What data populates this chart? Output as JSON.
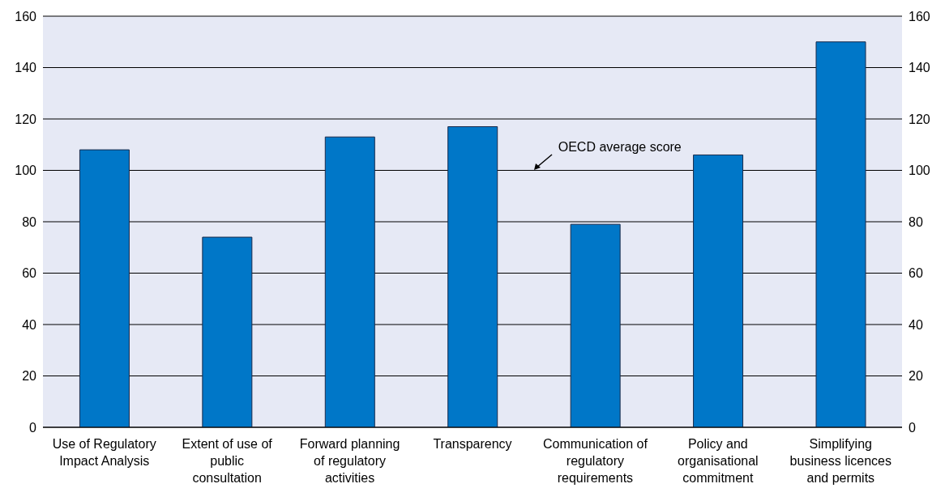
{
  "chart_data": {
    "type": "bar",
    "categories": [
      "Use of Regulatory Impact Analysis",
      "Extent of use of public consultation",
      "Forward planning of regulatory activities",
      "Transparency",
      "Communication of regulatory requirements",
      "Policy and organisational commitment",
      "Simplifying business licences and permits"
    ],
    "values": [
      108,
      74,
      113,
      117,
      79,
      106,
      150
    ],
    "color": "#0077c8",
    "ylim": [
      0,
      160
    ],
    "yticks": [
      0,
      20,
      40,
      60,
      80,
      100,
      120,
      140,
      160
    ],
    "y2lim": [
      0,
      160
    ],
    "y2ticks": [
      0,
      20,
      40,
      60,
      80,
      100,
      120,
      140,
      160
    ],
    "grid": "y",
    "annotations": [
      "OECD average score"
    ]
  }
}
